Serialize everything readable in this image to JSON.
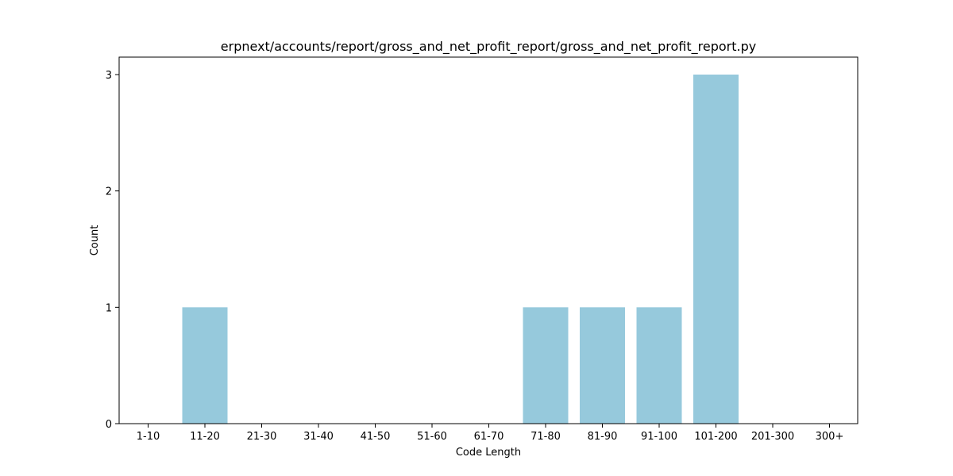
{
  "chart_data": {
    "type": "bar",
    "title": "erpnext/accounts/report/gross_and_net_profit_report/gross_and_net_profit_report.py",
    "xlabel": "Code Length",
    "ylabel": "Count",
    "categories": [
      "1-10",
      "11-20",
      "21-30",
      "31-40",
      "41-50",
      "51-60",
      "61-70",
      "71-80",
      "81-90",
      "91-100",
      "101-200",
      "201-300",
      "300+"
    ],
    "values": [
      0,
      1,
      0,
      0,
      0,
      0,
      0,
      1,
      1,
      1,
      3,
      0,
      0
    ],
    "ylim": [
      0,
      3.15
    ],
    "yticks": [
      0,
      1,
      2,
      3
    ],
    "grid": false,
    "bar_color": "#96c9dc"
  }
}
